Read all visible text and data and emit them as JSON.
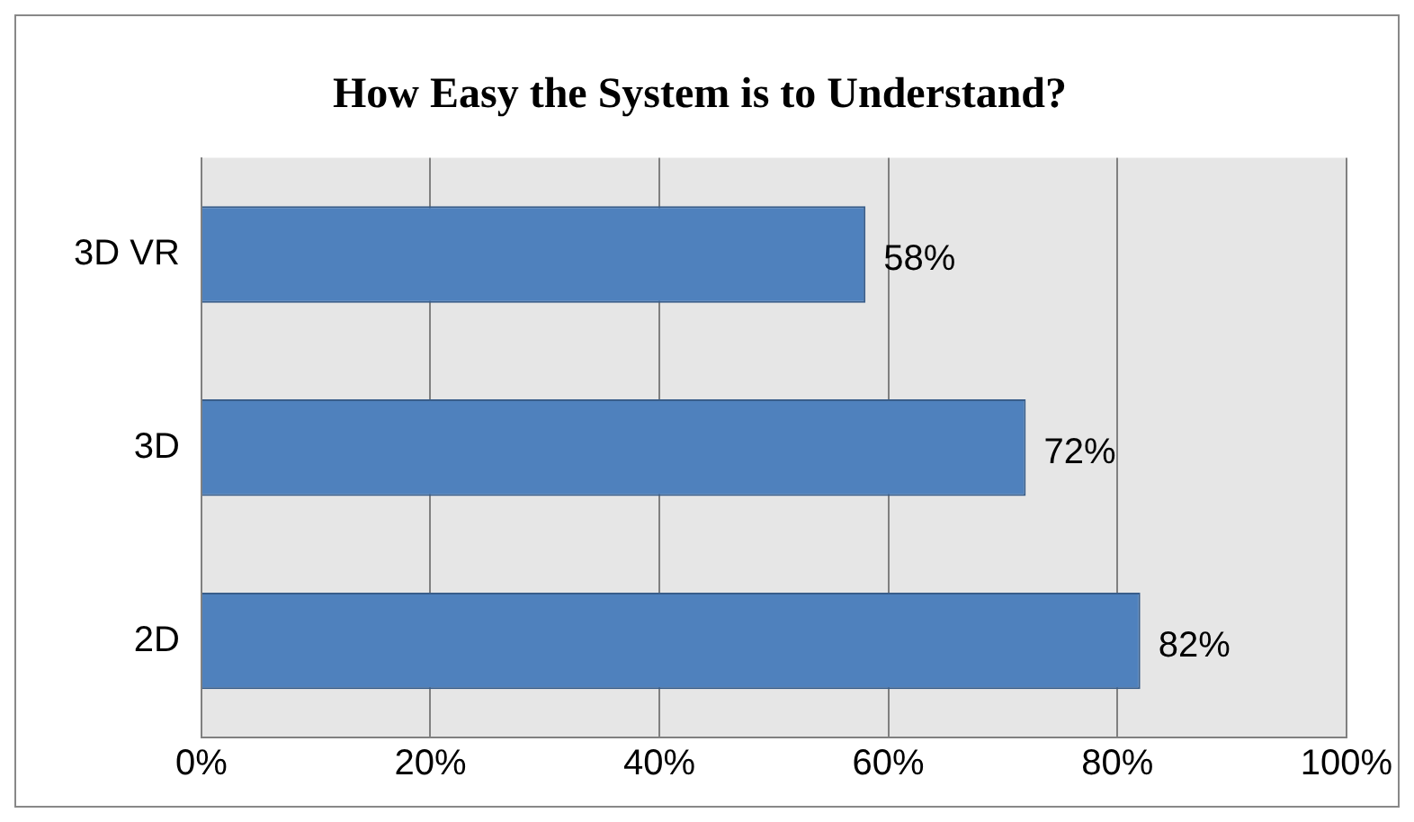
{
  "chart_data": {
    "type": "bar",
    "orientation": "horizontal",
    "title": "How Easy the System is to Understand?",
    "categories": [
      "3D VR",
      "3D",
      "2D"
    ],
    "values": [
      58,
      72,
      82
    ],
    "color": "#4f81bd",
    "value_labels": [
      "58%",
      "72%",
      "82%"
    ],
    "xlim": [
      0,
      100
    ],
    "xticks": [
      {
        "value": 0,
        "label": "0%"
      },
      {
        "value": 20,
        "label": "20%"
      },
      {
        "value": 40,
        "label": "40%"
      },
      {
        "value": 60,
        "label": "60%"
      },
      {
        "value": 80,
        "label": "80%"
      },
      {
        "value": 100,
        "label": "100%"
      }
    ],
    "grid": "x",
    "legend": false
  }
}
